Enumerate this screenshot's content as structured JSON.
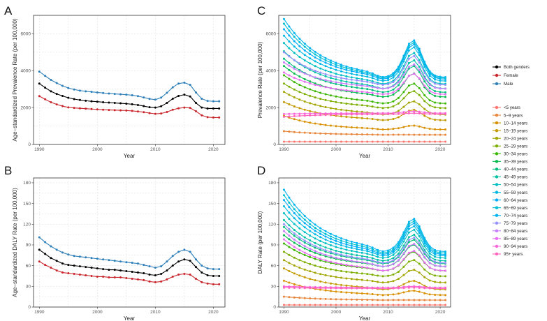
{
  "chart_data": [
    {
      "panel": "A",
      "type": "line",
      "xlabel": "Year",
      "ylabel": "Age−standardized Prevalence Rate (per 100,000)",
      "xlim": [
        1989,
        2022
      ],
      "ylim": [
        0,
        7000
      ],
      "xticks": [
        1990,
        2000,
        2010,
        2020
      ],
      "yticks": [
        0,
        2000,
        4000,
        6000
      ],
      "grid": true,
      "x": [
        1990,
        1991,
        1992,
        1993,
        1994,
        1995,
        1996,
        1997,
        1998,
        1999,
        2000,
        2001,
        2002,
        2003,
        2004,
        2005,
        2006,
        2007,
        2008,
        2009,
        2010,
        2011,
        2012,
        2013,
        2014,
        2015,
        2016,
        2017,
        2018,
        2019,
        2020,
        2021
      ],
      "series": [
        {
          "name": "Both genders",
          "color": "#000000",
          "values": [
            3300,
            3080,
            2880,
            2740,
            2630,
            2530,
            2460,
            2410,
            2370,
            2340,
            2320,
            2290,
            2270,
            2250,
            2230,
            2210,
            2180,
            2140,
            2080,
            2020,
            2000,
            2070,
            2250,
            2480,
            2630,
            2700,
            2600,
            2250,
            2000,
            1950,
            1950,
            1950
          ]
        },
        {
          "name": "Female",
          "color": "#c9252c",
          "values": [
            2620,
            2450,
            2290,
            2170,
            2080,
            2010,
            1980,
            1960,
            1940,
            1920,
            1900,
            1880,
            1870,
            1860,
            1850,
            1840,
            1820,
            1790,
            1750,
            1700,
            1660,
            1680,
            1760,
            1880,
            1960,
            2000,
            1980,
            1800,
            1580,
            1480,
            1460,
            1460
          ]
        },
        {
          "name": "Male",
          "color": "#2e7fb8",
          "values": [
            3950,
            3720,
            3500,
            3330,
            3180,
            3060,
            2980,
            2920,
            2880,
            2850,
            2820,
            2790,
            2760,
            2740,
            2720,
            2700,
            2670,
            2620,
            2550,
            2470,
            2430,
            2540,
            2800,
            3100,
            3300,
            3350,
            3230,
            2820,
            2480,
            2360,
            2340,
            2340
          ]
        }
      ]
    },
    {
      "panel": "B",
      "type": "line",
      "xlabel": "Year",
      "ylabel": "Age−standardized DALY Rate (per 100,000)",
      "xlim": [
        1989,
        2022
      ],
      "ylim": [
        0,
        187
      ],
      "xticks": [
        1990,
        2000,
        2010,
        2020
      ],
      "yticks": [
        0,
        30,
        60,
        90,
        120,
        150,
        180
      ],
      "grid": true,
      "x": [
        1990,
        1991,
        1992,
        1993,
        1994,
        1995,
        1996,
        1997,
        1998,
        1999,
        2000,
        2001,
        2002,
        2003,
        2004,
        2005,
        2006,
        2007,
        2008,
        2009,
        2010,
        2011,
        2012,
        2013,
        2014,
        2015,
        2016,
        2017,
        2018,
        2019,
        2020,
        2021
      ],
      "series": [
        {
          "name": "Both genders",
          "color": "#000000",
          "values": [
            83,
            77,
            71,
            67,
            63,
            61,
            60,
            59,
            58,
            57,
            56,
            55,
            54,
            54,
            53,
            52,
            51,
            50,
            49,
            47,
            46,
            48,
            53,
            60,
            66,
            69,
            67,
            58,
            50,
            46,
            45,
            45
          ]
        },
        {
          "name": "Female",
          "color": "#c9252c",
          "values": [
            66,
            61,
            57,
            53,
            50,
            49,
            48,
            47,
            46,
            45,
            44,
            44,
            43,
            43,
            43,
            42,
            41,
            40,
            39,
            37,
            36,
            37,
            40,
            44,
            47,
            48,
            47,
            41,
            36,
            34,
            33,
            33
          ]
        },
        {
          "name": "Male",
          "color": "#2e7fb8",
          "values": [
            101,
            94,
            88,
            83,
            79,
            76,
            74,
            73,
            72,
            71,
            70,
            69,
            68,
            67,
            66,
            65,
            64,
            63,
            61,
            59,
            57,
            59,
            66,
            74,
            80,
            83,
            80,
            69,
            60,
            56,
            55,
            55
          ]
        }
      ]
    },
    {
      "panel": "C",
      "type": "line",
      "xlabel": "Year",
      "ylabel": "Prevalence Rate (per 100,000)",
      "xlim": [
        1989,
        2022
      ],
      "ylim": [
        0,
        7000
      ],
      "xticks": [
        1990,
        2000,
        2010,
        2020
      ],
      "yticks": [
        0,
        2000,
        4000,
        6000
      ],
      "grid": true,
      "x": [
        1990,
        1991,
        1992,
        1993,
        1994,
        1995,
        1996,
        1997,
        1998,
        1999,
        2000,
        2001,
        2002,
        2003,
        2004,
        2005,
        2006,
        2007,
        2008,
        2009,
        2010,
        2011,
        2012,
        2013,
        2014,
        2015,
        2016,
        2017,
        2018,
        2019,
        2020,
        2021
      ],
      "series": [
        {
          "name": "<5 years",
          "color": "#f8766d",
          "start": 150,
          "end": 150,
          "bump": 0
        },
        {
          "name": "5−9 years",
          "color": "#e8853a",
          "start": 720,
          "end": 520,
          "bump": 0
        },
        {
          "name": "10−14 years",
          "color": "#d89000",
          "start": 1550,
          "end": 800,
          "bump": 200
        },
        {
          "name": "15−19 years",
          "color": "#c49a00",
          "start": 2300,
          "end": 1300,
          "bump": 550
        },
        {
          "name": "20−24 years",
          "color": "#a3a500",
          "start": 2850,
          "end": 1600,
          "bump": 700
        },
        {
          "name": "25−29 years",
          "color": "#7cae00",
          "start": 3300,
          "end": 1950,
          "bump": 900
        },
        {
          "name": "30−34 years",
          "color": "#39b600",
          "start": 3750,
          "end": 2200,
          "bump": 1050
        },
        {
          "name": "35−39 years",
          "color": "#00bb4e",
          "start": 4250,
          "end": 2550,
          "bump": 1250
        },
        {
          "name": "40−44 years",
          "color": "#00bf7d",
          "start": 4650,
          "end": 2800,
          "bump": 1400
        },
        {
          "name": "45−49 years",
          "color": "#00c1a3",
          "start": 5050,
          "end": 3000,
          "bump": 1500
        },
        {
          "name": "50−54 years",
          "color": "#00bfc4",
          "start": 5500,
          "end": 3250,
          "bump": 1650
        },
        {
          "name": "55−59 years",
          "color": "#00b9e3",
          "start": 5900,
          "end": 3400,
          "bump": 1800
        },
        {
          "name": "60−64 years",
          "color": "#00adfa",
          "start": 6250,
          "end": 3500,
          "bump": 1850
        },
        {
          "name": "65−69 years",
          "color": "#00c0d0",
          "start": 6550,
          "end": 3550,
          "bump": 1900
        },
        {
          "name": "70−74 years",
          "color": "#00b4f0",
          "start": 6800,
          "end": 3600,
          "bump": 1950
        },
        {
          "name": "75−79 years",
          "color": "#9590ff",
          "start": 5000,
          "end": 3200,
          "bump": 1550
        },
        {
          "name": "80−84 years",
          "color": "#c77cff",
          "start": 4450,
          "end": 3000,
          "bump": 1300
        },
        {
          "name": "85−89 years",
          "color": "#e76bf3",
          "start": 3900,
          "end": 2700,
          "bump": 1100
        },
        {
          "name": "90−94 years",
          "color": "#fa62db",
          "start": 1650,
          "end": 1700,
          "bump": 100
        },
        {
          "name": "95+ years",
          "color": "#ff62bc",
          "start": 1500,
          "end": 1650,
          "bump": 50
        }
      ]
    },
    {
      "panel": "D",
      "type": "line",
      "xlabel": "Year",
      "ylabel": "DALY Rate (per 100,000)",
      "xlim": [
        1989,
        2022
      ],
      "ylim": [
        0,
        187
      ],
      "xticks": [
        1990,
        2000,
        2010,
        2020
      ],
      "yticks": [
        0,
        30,
        60,
        90,
        120,
        150,
        180
      ],
      "grid": true,
      "x": [
        1990,
        1991,
        1992,
        1993,
        1994,
        1995,
        1996,
        1997,
        1998,
        1999,
        2000,
        2001,
        2002,
        2003,
        2004,
        2005,
        2006,
        2007,
        2008,
        2009,
        2010,
        2011,
        2012,
        2013,
        2014,
        2015,
        2016,
        2017,
        2018,
        2019,
        2020,
        2021
      ],
      "series": [
        {
          "name": "<5 years",
          "color": "#f8766d",
          "start": 3,
          "end": 3,
          "bump": 0
        },
        {
          "name": "5−9 years",
          "color": "#e8853a",
          "start": 15,
          "end": 10,
          "bump": 0
        },
        {
          "name": "10−14 years",
          "color": "#d89000",
          "start": 38,
          "end": 17,
          "bump": 6
        },
        {
          "name": "15−19 years",
          "color": "#c49a00",
          "start": 56,
          "end": 25,
          "bump": 12
        },
        {
          "name": "20−24 years",
          "color": "#a3a500",
          "start": 68,
          "end": 35,
          "bump": 18
        },
        {
          "name": "25−29 years",
          "color": "#7cae00",
          "start": 80,
          "end": 44,
          "bump": 23
        },
        {
          "name": "30−34 years",
          "color": "#39b600",
          "start": 92,
          "end": 52,
          "bump": 27
        },
        {
          "name": "35−39 years",
          "color": "#00bb4e",
          "start": 104,
          "end": 58,
          "bump": 31
        },
        {
          "name": "40−44 years",
          "color": "#00bf7d",
          "start": 116,
          "end": 62,
          "bump": 34
        },
        {
          "name": "45−49 years",
          "color": "#00c1a3",
          "start": 126,
          "end": 66,
          "bump": 37
        },
        {
          "name": "50−54 years",
          "color": "#00bfc4",
          "start": 136,
          "end": 70,
          "bump": 40
        },
        {
          "name": "55−59 years",
          "color": "#00b9e3",
          "start": 146,
          "end": 73,
          "bump": 42
        },
        {
          "name": "60−64 years",
          "color": "#00adfa",
          "start": 155,
          "end": 75,
          "bump": 44
        },
        {
          "name": "65−69 years",
          "color": "#00c0d0",
          "start": 162,
          "end": 77,
          "bump": 45
        },
        {
          "name": "70−74 years",
          "color": "#00b4f0",
          "start": 170,
          "end": 79,
          "bump": 46
        },
        {
          "name": "75−79 years",
          "color": "#9590ff",
          "start": 120,
          "end": 63,
          "bump": 36
        },
        {
          "name": "80−84 years",
          "color": "#c77cff",
          "start": 110,
          "end": 58,
          "bump": 32
        },
        {
          "name": "85−89 years",
          "color": "#e76bf3",
          "start": 98,
          "end": 52,
          "bump": 28
        },
        {
          "name": "90−94 years",
          "color": "#fa62db",
          "start": 30,
          "end": 28,
          "bump": 2
        },
        {
          "name": "95+ years",
          "color": "#ff62bc",
          "start": 28,
          "end": 27,
          "bump": 1
        }
      ]
    }
  ],
  "legend_genders": [
    {
      "label": "Both genders",
      "color": "#000000"
    },
    {
      "label": "Female",
      "color": "#c9252c"
    },
    {
      "label": "Male",
      "color": "#2e7fb8"
    }
  ],
  "legend_ages": [
    {
      "label": "<5 years",
      "color": "#f8766d"
    },
    {
      "label": "5−9 years",
      "color": "#e8853a"
    },
    {
      "label": "10−14 years",
      "color": "#d89000"
    },
    {
      "label": "15−19 years",
      "color": "#c49a00"
    },
    {
      "label": "20−24 years",
      "color": "#a3a500"
    },
    {
      "label": "25−29 years",
      "color": "#7cae00"
    },
    {
      "label": "30−34 years",
      "color": "#39b600"
    },
    {
      "label": "35−39 years",
      "color": "#00bb4e"
    },
    {
      "label": "40−44 years",
      "color": "#00bf7d"
    },
    {
      "label": "45−49 years",
      "color": "#00c1a3"
    },
    {
      "label": "50−54 years",
      "color": "#00bfc4"
    },
    {
      "label": "55−59 years",
      "color": "#00b9e3"
    },
    {
      "label": "60−64 years",
      "color": "#00adfa"
    },
    {
      "label": "65−69 years",
      "color": "#00c0d0"
    },
    {
      "label": "70−74 years",
      "color": "#00b4f0"
    },
    {
      "label": "75−79 years",
      "color": "#9590ff"
    },
    {
      "label": "80−84 years",
      "color": "#c77cff"
    },
    {
      "label": "85−89 years",
      "color": "#e76bf3"
    },
    {
      "label": "90−94 years",
      "color": "#fa62db"
    },
    {
      "label": "95+ years",
      "color": "#ff62bc"
    }
  ]
}
